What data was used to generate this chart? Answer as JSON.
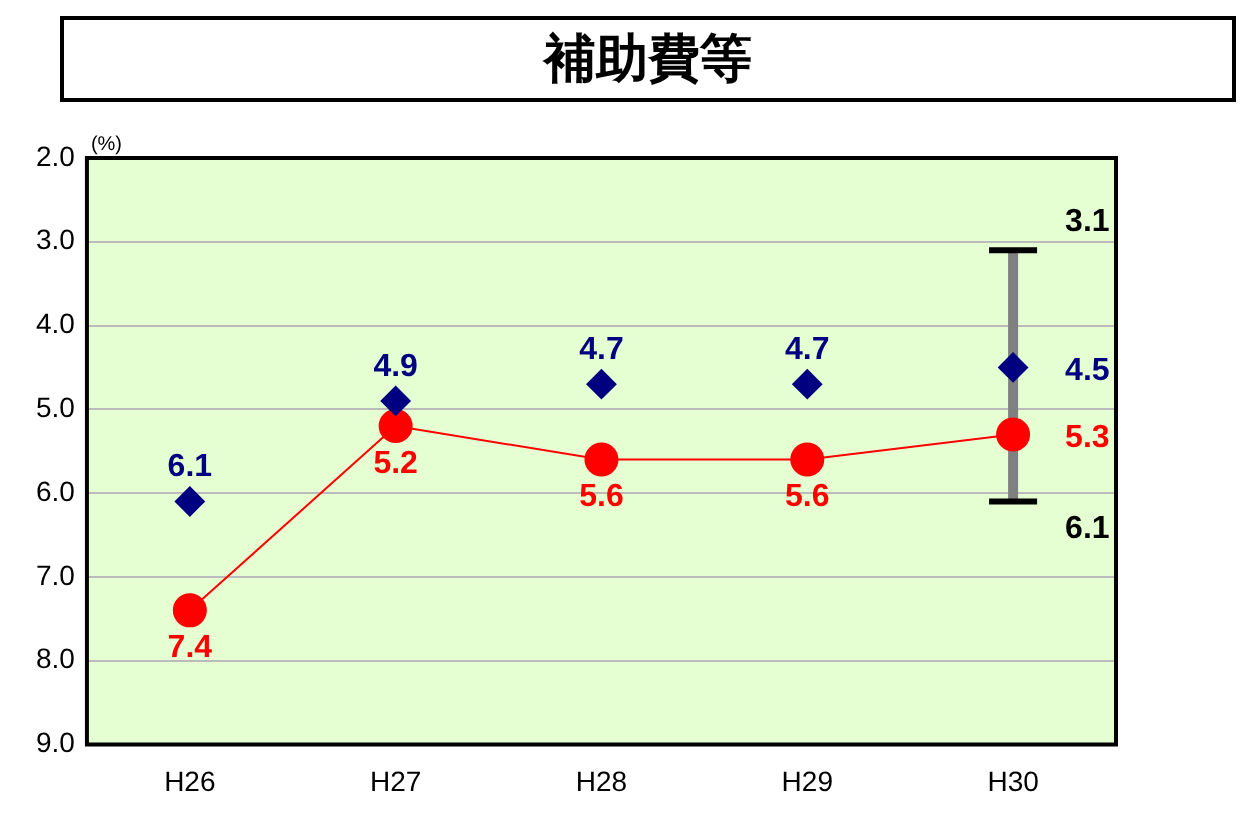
{
  "chart_data": {
    "type": "line",
    "title": "補助費等",
    "ylabel": "(%)",
    "categories": [
      "H26",
      "H27",
      "H28",
      "H29",
      "H30"
    ],
    "series": [
      {
        "type": "scatter",
        "color": "#000080",
        "marker": "diamond",
        "values": [
          6.1,
          4.9,
          4.7,
          4.7,
          4.5
        ],
        "errors": [
          null,
          null,
          null,
          null,
          [
            3.1,
            6.1
          ]
        ]
      },
      {
        "type": "line",
        "color": "#ff0000",
        "marker": "circle",
        "values": [
          7.4,
          5.2,
          5.6,
          5.6,
          5.3
        ]
      }
    ],
    "annotations": [
      {
        "text": "3.1",
        "x": "H30",
        "y": 3.1
      },
      {
        "text": "6.1",
        "x": "H30",
        "y": 6.1
      }
    ],
    "ylim": [
      9.0,
      2.0
    ],
    "yticks": [
      {
        "value": 2,
        "label": "2.0"
      },
      {
        "value": 3,
        "label": "3.0"
      },
      {
        "value": 4,
        "label": "4.0"
      },
      {
        "value": 5,
        "label": "5.0"
      },
      {
        "value": 6,
        "label": "6.0"
      },
      {
        "value": 7,
        "label": "7.0"
      },
      {
        "value": 8,
        "label": "8.0"
      },
      {
        "value": 9,
        "label": "9.0"
      }
    ],
    "grid": "y",
    "data_labels": true
  }
}
